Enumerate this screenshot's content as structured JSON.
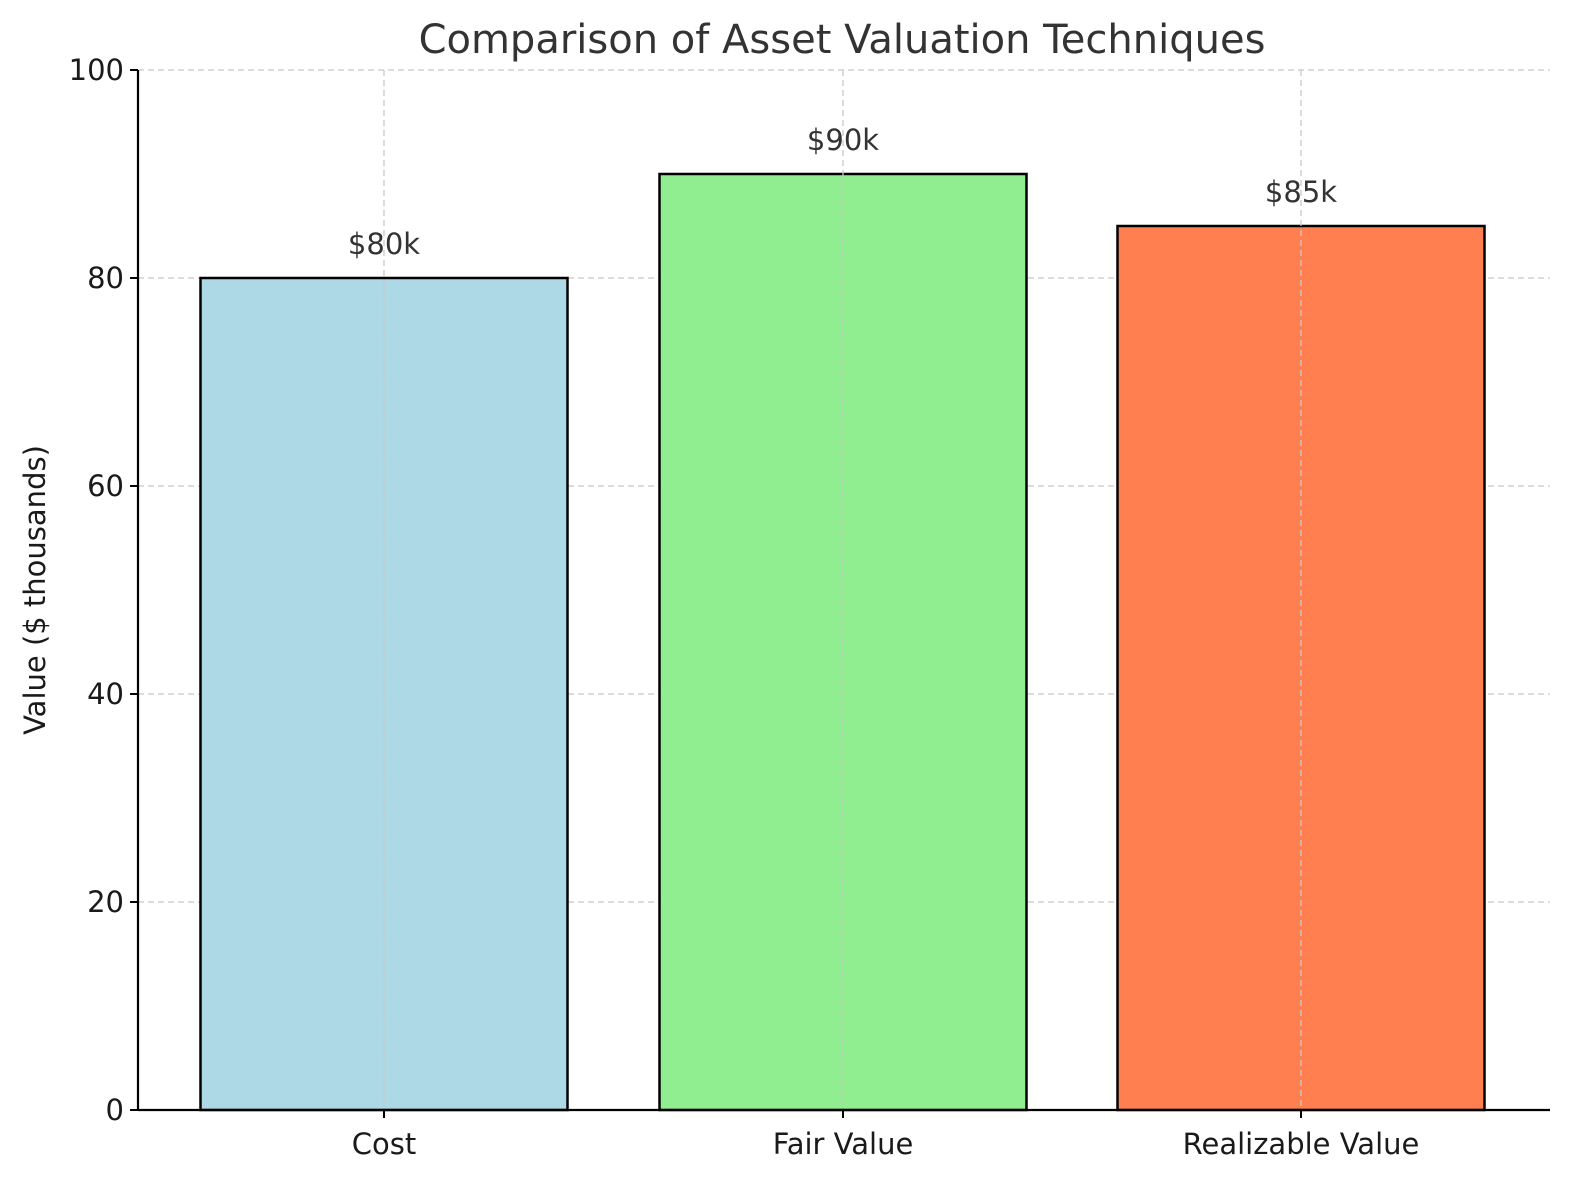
{
  "chart_data": {
    "type": "bar",
    "title": "Comparison of Asset Valuation Techniques",
    "xlabel": "",
    "ylabel": "Value ($ thousands)",
    "categories": [
      "Cost",
      "Fair Value",
      "Realizable Value"
    ],
    "values": [
      80,
      90,
      85
    ],
    "data_labels": [
      "$80k",
      "$90k",
      "$85k"
    ],
    "colors": [
      "#add8e6",
      "#90ee90",
      "#ff7f50"
    ],
    "ylim": [
      0,
      100
    ],
    "yticks": [
      0,
      20,
      40,
      60,
      80,
      100
    ],
    "grid": true
  }
}
